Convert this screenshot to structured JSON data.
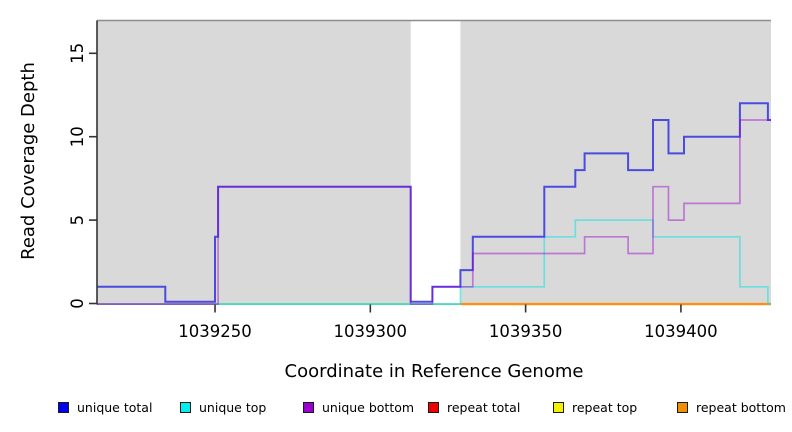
{
  "chart_data": {
    "type": "line",
    "subtype": "step-coverage",
    "title": "",
    "xlabel": "Coordinate in Reference Genome",
    "ylabel": "Read Coverage Depth",
    "layout": {
      "xlim": [
        1039212,
        1039429
      ],
      "ylim": [
        0,
        15
      ],
      "grid": false,
      "legend_position": "bottom",
      "shading_note": "gray rectangles mark covered reference regions with a white gap at 1039313-1039329"
    },
    "x_axis": {
      "ticks": [
        1039250,
        1039300,
        1039350,
        1039400
      ],
      "tick_labels": [
        "1039250",
        "1039300",
        "1039350",
        "1039400"
      ]
    },
    "y_axis": {
      "ticks": [
        0,
        5,
        10,
        15
      ],
      "tick_labels": [
        "0",
        "5",
        "10",
        "15"
      ]
    },
    "colors": {
      "shading": "#d9d9d9",
      "plot_box_top": "#8e8e8e",
      "axis": "#333333"
    },
    "shaded_regions": [
      {
        "from": 1039212,
        "to": 1039313
      },
      {
        "from": 1039329,
        "to": 1039429
      }
    ],
    "baseline_segments": [
      {
        "from": 1039212,
        "to": 1039250,
        "color": "#dc5f6e",
        "width": 1.6,
        "note": "repeat total at 0"
      },
      {
        "from": 1039250,
        "to": 1039329,
        "color": "#7ccc85",
        "width": 1.6,
        "note": "unique top / repeat top overlapping at 0"
      },
      {
        "from": 1039329,
        "to": 1039429,
        "color": "#fa9012",
        "width": 2.4,
        "note": "repeat bottom at 0"
      }
    ],
    "series_draw_order": [
      "unique_top",
      "unique_total",
      "unique_bottom"
    ],
    "series": [
      {
        "key": "unique_top",
        "name": "unique top",
        "legend_color": "#00eeee",
        "stroke": "#00e5e5",
        "opacity": 0.5,
        "width": 1.7,
        "points": [
          [
            1039212,
            0
          ],
          [
            1039329,
            1
          ],
          [
            1039356,
            4
          ],
          [
            1039366,
            5
          ],
          [
            1039391,
            4
          ],
          [
            1039419,
            1
          ],
          [
            1039428,
            0
          ],
          [
            1039429,
            0
          ]
        ]
      },
      {
        "key": "unique_total",
        "name": "unique total",
        "legend_color": "#0000ee",
        "stroke": "#3b3be0",
        "opacity": 0.9,
        "width": 2,
        "zero_lift": 1.8,
        "points": [
          [
            1039212,
            1
          ],
          [
            1039234,
            0
          ],
          [
            1039250,
            4
          ],
          [
            1039251,
            7
          ],
          [
            1039313,
            0
          ],
          [
            1039320,
            1
          ],
          [
            1039329,
            2
          ],
          [
            1039333,
            4
          ],
          [
            1039356,
            7
          ],
          [
            1039366,
            8
          ],
          [
            1039369,
            9
          ],
          [
            1039383,
            8
          ],
          [
            1039391,
            11
          ],
          [
            1039396,
            9
          ],
          [
            1039401,
            10
          ],
          [
            1039419,
            12
          ],
          [
            1039428,
            11
          ],
          [
            1039429,
            11
          ]
        ]
      },
      {
        "key": "unique_bottom",
        "name": "unique bottom",
        "legend_color": "#9a00d0",
        "stroke": "#9900cc",
        "opacity": 0.45,
        "width": 1.7,
        "points": [
          [
            1039212,
            0
          ],
          [
            1039251,
            7
          ],
          [
            1039313,
            0
          ],
          [
            1039320,
            1
          ],
          [
            1039333,
            3
          ],
          [
            1039369,
            4
          ],
          [
            1039383,
            3
          ],
          [
            1039391,
            7
          ],
          [
            1039396,
            5
          ],
          [
            1039401,
            6
          ],
          [
            1039419,
            11
          ],
          [
            1039429,
            11
          ]
        ]
      },
      {
        "key": "repeat_total",
        "name": "repeat total",
        "legend_color": "#ee0000",
        "stroke": "#dc5f6e",
        "opacity": 1,
        "width": 0,
        "points": [
          [
            1039212,
            0
          ],
          [
            1039429,
            0
          ]
        ]
      },
      {
        "key": "repeat_top",
        "name": "repeat top",
        "legend_color": "#f2f200",
        "stroke": "#f2f200",
        "opacity": 1,
        "width": 0,
        "points": [
          [
            1039212,
            0
          ],
          [
            1039429,
            0
          ]
        ]
      },
      {
        "key": "repeat_bottom",
        "name": "repeat bottom",
        "legend_color": "#f09000",
        "stroke": "#fa9012",
        "opacity": 1,
        "width": 0,
        "points": [
          [
            1039212,
            0
          ],
          [
            1039429,
            0
          ]
        ]
      }
    ],
    "legend": [
      {
        "label": "unique total",
        "color": "#0000ee"
      },
      {
        "label": "unique top",
        "color": "#00eeee"
      },
      {
        "label": "unique bottom",
        "color": "#9a00d0"
      },
      {
        "label": "repeat total",
        "color": "#ee0000"
      },
      {
        "label": "repeat top",
        "color": "#f2f200"
      },
      {
        "label": "repeat bottom",
        "color": "#f09000"
      }
    ]
  }
}
